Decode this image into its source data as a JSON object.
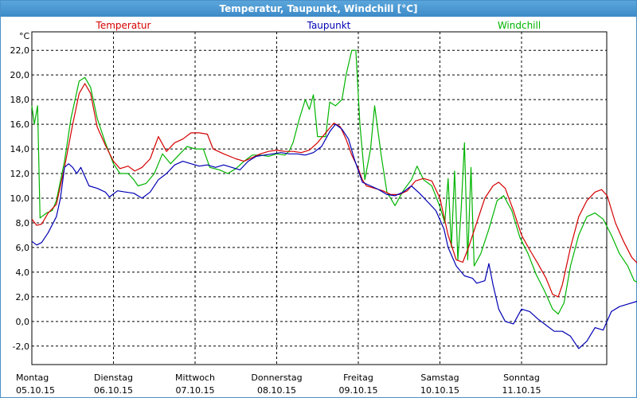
{
  "window": {
    "title": "Temperatur, Taupunkt, Windchill [°C]"
  },
  "chart_data": {
    "type": "line",
    "title": "Temperatur, Taupunkt, Windchill [°C]",
    "ylabel": "°C",
    "ylim": [
      -3.5,
      23.5
    ],
    "yticks": [
      22,
      20,
      18,
      16,
      14,
      12,
      10,
      8,
      6,
      4,
      2,
      0,
      -2
    ],
    "ytick_labels": [
      "22,0",
      "20,0",
      "18,0",
      "16,0",
      "14,0",
      "12,0",
      "10,0",
      "8,0",
      "6,0",
      "4,0",
      "2,0",
      "0,0",
      "-2,0"
    ],
    "grid": true,
    "legend_position": "top",
    "xlim": [
      0,
      7.18
    ],
    "x_ticks": [
      {
        "x": 0,
        "day": "Montag",
        "date": "05.10.15"
      },
      {
        "x": 1,
        "day": "Dienstag",
        "date": "06.10.15"
      },
      {
        "x": 2,
        "day": "Mittwoch",
        "date": "07.10.15"
      },
      {
        "x": 3,
        "day": "Donnerstag",
        "date": "08.10.15"
      },
      {
        "x": 4,
        "day": "Freitag",
        "date": "09.10.15"
      },
      {
        "x": 5,
        "day": "Samstag",
        "date": "10.10.15"
      },
      {
        "x": 6,
        "day": "Sonntag",
        "date": "11.10.15"
      }
    ],
    "series": [
      {
        "name": "Temperatur",
        "color": "#d40000",
        "points": [
          [
            0,
            8.3
          ],
          [
            0.06,
            7.8
          ],
          [
            0.12,
            7.9
          ],
          [
            0.2,
            8.8
          ],
          [
            0.3,
            9.5
          ],
          [
            0.4,
            12.5
          ],
          [
            0.5,
            16.0
          ],
          [
            0.58,
            18.5
          ],
          [
            0.65,
            19.3
          ],
          [
            0.72,
            18.5
          ],
          [
            0.8,
            15.8
          ],
          [
            0.9,
            14.3
          ],
          [
            1.0,
            13.0
          ],
          [
            1.08,
            12.4
          ],
          [
            1.18,
            12.6
          ],
          [
            1.26,
            12.2
          ],
          [
            1.35,
            12.5
          ],
          [
            1.45,
            13.2
          ],
          [
            1.55,
            15.0
          ],
          [
            1.65,
            13.8
          ],
          [
            1.75,
            14.5
          ],
          [
            1.85,
            14.8
          ],
          [
            1.95,
            15.3
          ],
          [
            2.05,
            15.3
          ],
          [
            2.15,
            15.2
          ],
          [
            2.22,
            14.0
          ],
          [
            2.35,
            13.6
          ],
          [
            2.5,
            13.2
          ],
          [
            2.6,
            13.0
          ],
          [
            2.7,
            13.3
          ],
          [
            2.8,
            13.6
          ],
          [
            2.9,
            13.8
          ],
          [
            3.0,
            13.9
          ],
          [
            3.1,
            13.8
          ],
          [
            3.2,
            13.8
          ],
          [
            3.3,
            13.7
          ],
          [
            3.4,
            13.9
          ],
          [
            3.5,
            14.5
          ],
          [
            3.6,
            15.3
          ],
          [
            3.7,
            16.1
          ],
          [
            3.78,
            15.8
          ],
          [
            3.85,
            14.8
          ],
          [
            3.92,
            13.5
          ],
          [
            4.0,
            12.4
          ],
          [
            4.05,
            11.5
          ],
          [
            4.1,
            11.0
          ],
          [
            4.2,
            10.8
          ],
          [
            4.3,
            10.6
          ],
          [
            4.4,
            10.3
          ],
          [
            4.5,
            10.3
          ],
          [
            4.6,
            10.6
          ],
          [
            4.7,
            11.4
          ],
          [
            4.8,
            11.6
          ],
          [
            4.9,
            11.4
          ],
          [
            5.0,
            10.0
          ],
          [
            5.05,
            8.5
          ],
          [
            5.1,
            7.0
          ],
          [
            5.2,
            5.0
          ],
          [
            5.28,
            4.8
          ],
          [
            5.35,
            6.0
          ],
          [
            5.45,
            8.0
          ],
          [
            5.55,
            10.0
          ],
          [
            5.65,
            11.0
          ],
          [
            5.72,
            11.3
          ],
          [
            5.8,
            10.8
          ],
          [
            5.9,
            9.0
          ],
          [
            6.0,
            7.0
          ],
          [
            6.1,
            5.8
          ],
          [
            6.2,
            4.7
          ],
          [
            6.3,
            3.5
          ],
          [
            6.38,
            2.2
          ],
          [
            6.45,
            2.0
          ],
          [
            6.5,
            3.0
          ],
          [
            6.6,
            6.0
          ],
          [
            6.7,
            8.5
          ],
          [
            6.8,
            9.8
          ],
          [
            6.9,
            10.5
          ],
          [
            6.98,
            10.7
          ],
          [
            7.05,
            10.2
          ],
          [
            7.15,
            8.0
          ],
          [
            7.25,
            6.5
          ],
          [
            7.35,
            5.2
          ],
          [
            7.45,
            4.5
          ]
        ]
      },
      {
        "name": "Taupunkt",
        "color": "#0000b4",
        "points": [
          [
            0,
            6.5
          ],
          [
            0.06,
            6.2
          ],
          [
            0.12,
            6.4
          ],
          [
            0.2,
            7.2
          ],
          [
            0.3,
            8.5
          ],
          [
            0.35,
            10.0
          ],
          [
            0.4,
            12.5
          ],
          [
            0.45,
            12.8
          ],
          [
            0.5,
            12.5
          ],
          [
            0.55,
            12.0
          ],
          [
            0.6,
            12.5
          ],
          [
            0.7,
            11.0
          ],
          [
            0.8,
            10.8
          ],
          [
            0.9,
            10.5
          ],
          [
            0.95,
            10.1
          ],
          [
            1.05,
            10.6
          ],
          [
            1.15,
            10.5
          ],
          [
            1.25,
            10.4
          ],
          [
            1.35,
            10.0
          ],
          [
            1.45,
            10.5
          ],
          [
            1.55,
            11.5
          ],
          [
            1.65,
            12.0
          ],
          [
            1.75,
            12.7
          ],
          [
            1.85,
            13.0
          ],
          [
            1.95,
            12.8
          ],
          [
            2.05,
            12.6
          ],
          [
            2.15,
            12.7
          ],
          [
            2.25,
            12.5
          ],
          [
            2.35,
            12.7
          ],
          [
            2.45,
            12.5
          ],
          [
            2.55,
            12.3
          ],
          [
            2.65,
            13.0
          ],
          [
            2.75,
            13.4
          ],
          [
            2.85,
            13.5
          ],
          [
            2.95,
            13.6
          ],
          [
            3.05,
            13.7
          ],
          [
            3.15,
            13.6
          ],
          [
            3.25,
            13.6
          ],
          [
            3.35,
            13.5
          ],
          [
            3.45,
            13.7
          ],
          [
            3.55,
            14.2
          ],
          [
            3.65,
            15.4
          ],
          [
            3.72,
            16.0
          ],
          [
            3.8,
            15.6
          ],
          [
            3.88,
            14.8
          ],
          [
            3.95,
            13.2
          ],
          [
            4.05,
            11.3
          ],
          [
            4.15,
            11.0
          ],
          [
            4.25,
            10.7
          ],
          [
            4.35,
            10.3
          ],
          [
            4.45,
            10.2
          ],
          [
            4.55,
            10.5
          ],
          [
            4.65,
            11.0
          ],
          [
            4.75,
            10.4
          ],
          [
            4.85,
            9.7
          ],
          [
            4.95,
            9.0
          ],
          [
            5.05,
            7.5
          ],
          [
            5.1,
            6.0
          ],
          [
            5.2,
            4.5
          ],
          [
            5.3,
            3.7
          ],
          [
            5.4,
            3.5
          ],
          [
            5.45,
            3.1
          ],
          [
            5.55,
            3.3
          ],
          [
            5.6,
            4.7
          ],
          [
            5.65,
            3.0
          ],
          [
            5.72,
            1.0
          ],
          [
            5.8,
            0.0
          ],
          [
            5.9,
            -0.2
          ],
          [
            6.0,
            1.0
          ],
          [
            6.1,
            0.8
          ],
          [
            6.2,
            0.2
          ],
          [
            6.3,
            -0.3
          ],
          [
            6.4,
            -0.8
          ],
          [
            6.5,
            -0.8
          ],
          [
            6.6,
            -1.2
          ],
          [
            6.7,
            -2.2
          ],
          [
            6.8,
            -1.6
          ],
          [
            6.9,
            -0.5
          ],
          [
            7.0,
            -0.7
          ],
          [
            7.1,
            0.8
          ],
          [
            7.2,
            1.2
          ],
          [
            7.3,
            1.4
          ],
          [
            7.4,
            1.6
          ],
          [
            7.45,
            1.7
          ]
        ]
      },
      {
        "name": "Windchill",
        "color": "#00b400",
        "points": [
          [
            0,
            17.5
          ],
          [
            0.03,
            16.0
          ],
          [
            0.07,
            17.5
          ],
          [
            0.1,
            8.4
          ],
          [
            0.18,
            8.8
          ],
          [
            0.25,
            9.0
          ],
          [
            0.3,
            9.8
          ],
          [
            0.4,
            13.0
          ],
          [
            0.48,
            16.5
          ],
          [
            0.58,
            19.5
          ],
          [
            0.65,
            19.8
          ],
          [
            0.72,
            19.0
          ],
          [
            0.8,
            16.5
          ],
          [
            0.9,
            14.5
          ],
          [
            1.0,
            12.8
          ],
          [
            1.08,
            12.0
          ],
          [
            1.18,
            12.0
          ],
          [
            1.25,
            11.5
          ],
          [
            1.3,
            11.0
          ],
          [
            1.4,
            11.2
          ],
          [
            1.5,
            12.0
          ],
          [
            1.6,
            13.6
          ],
          [
            1.7,
            12.8
          ],
          [
            1.8,
            13.5
          ],
          [
            1.9,
            14.2
          ],
          [
            2.0,
            14.0
          ],
          [
            2.1,
            14.0
          ],
          [
            2.18,
            12.5
          ],
          [
            2.3,
            12.3
          ],
          [
            2.4,
            12.0
          ],
          [
            2.5,
            12.4
          ],
          [
            2.6,
            13.0
          ],
          [
            2.7,
            13.5
          ],
          [
            2.8,
            13.5
          ],
          [
            2.9,
            13.4
          ],
          [
            3.0,
            13.6
          ],
          [
            3.1,
            13.5
          ],
          [
            3.15,
            13.8
          ],
          [
            3.2,
            14.5
          ],
          [
            3.28,
            16.5
          ],
          [
            3.35,
            18.0
          ],
          [
            3.4,
            17.2
          ],
          [
            3.45,
            18.4
          ],
          [
            3.5,
            15.0
          ],
          [
            3.6,
            15.0
          ],
          [
            3.65,
            17.8
          ],
          [
            3.72,
            17.5
          ],
          [
            3.8,
            18.0
          ],
          [
            3.85,
            20.0
          ],
          [
            3.92,
            22.0
          ],
          [
            3.97,
            22.0
          ],
          [
            4.02,
            16.0
          ],
          [
            4.08,
            11.5
          ],
          [
            4.15,
            14.0
          ],
          [
            4.2,
            17.5
          ],
          [
            4.28,
            13.5
          ],
          [
            4.35,
            10.5
          ],
          [
            4.45,
            9.4
          ],
          [
            4.55,
            10.6
          ],
          [
            4.65,
            11.5
          ],
          [
            4.72,
            12.6
          ],
          [
            4.8,
            11.5
          ],
          [
            4.9,
            11.0
          ],
          [
            5.0,
            9.3
          ],
          [
            5.06,
            8.0
          ],
          [
            5.1,
            11.6
          ],
          [
            5.14,
            6.0
          ],
          [
            5.18,
            12.2
          ],
          [
            5.22,
            5.0
          ],
          [
            5.26,
            9.0
          ],
          [
            5.3,
            14.5
          ],
          [
            5.34,
            5.0
          ],
          [
            5.38,
            12.5
          ],
          [
            5.42,
            4.5
          ],
          [
            5.5,
            5.5
          ],
          [
            5.6,
            7.5
          ],
          [
            5.7,
            9.8
          ],
          [
            5.78,
            10.2
          ],
          [
            5.88,
            9.0
          ],
          [
            5.98,
            6.8
          ],
          [
            6.08,
            5.5
          ],
          [
            6.18,
            3.8
          ],
          [
            6.28,
            2.5
          ],
          [
            6.38,
            1.0
          ],
          [
            6.45,
            0.6
          ],
          [
            6.52,
            1.5
          ],
          [
            6.6,
            4.5
          ],
          [
            6.7,
            7.0
          ],
          [
            6.8,
            8.5
          ],
          [
            6.9,
            8.8
          ],
          [
            7.0,
            8.3
          ],
          [
            7.1,
            7.0
          ],
          [
            7.2,
            5.5
          ],
          [
            7.3,
            4.5
          ],
          [
            7.38,
            3.3
          ],
          [
            7.45,
            3.1
          ]
        ]
      }
    ]
  }
}
